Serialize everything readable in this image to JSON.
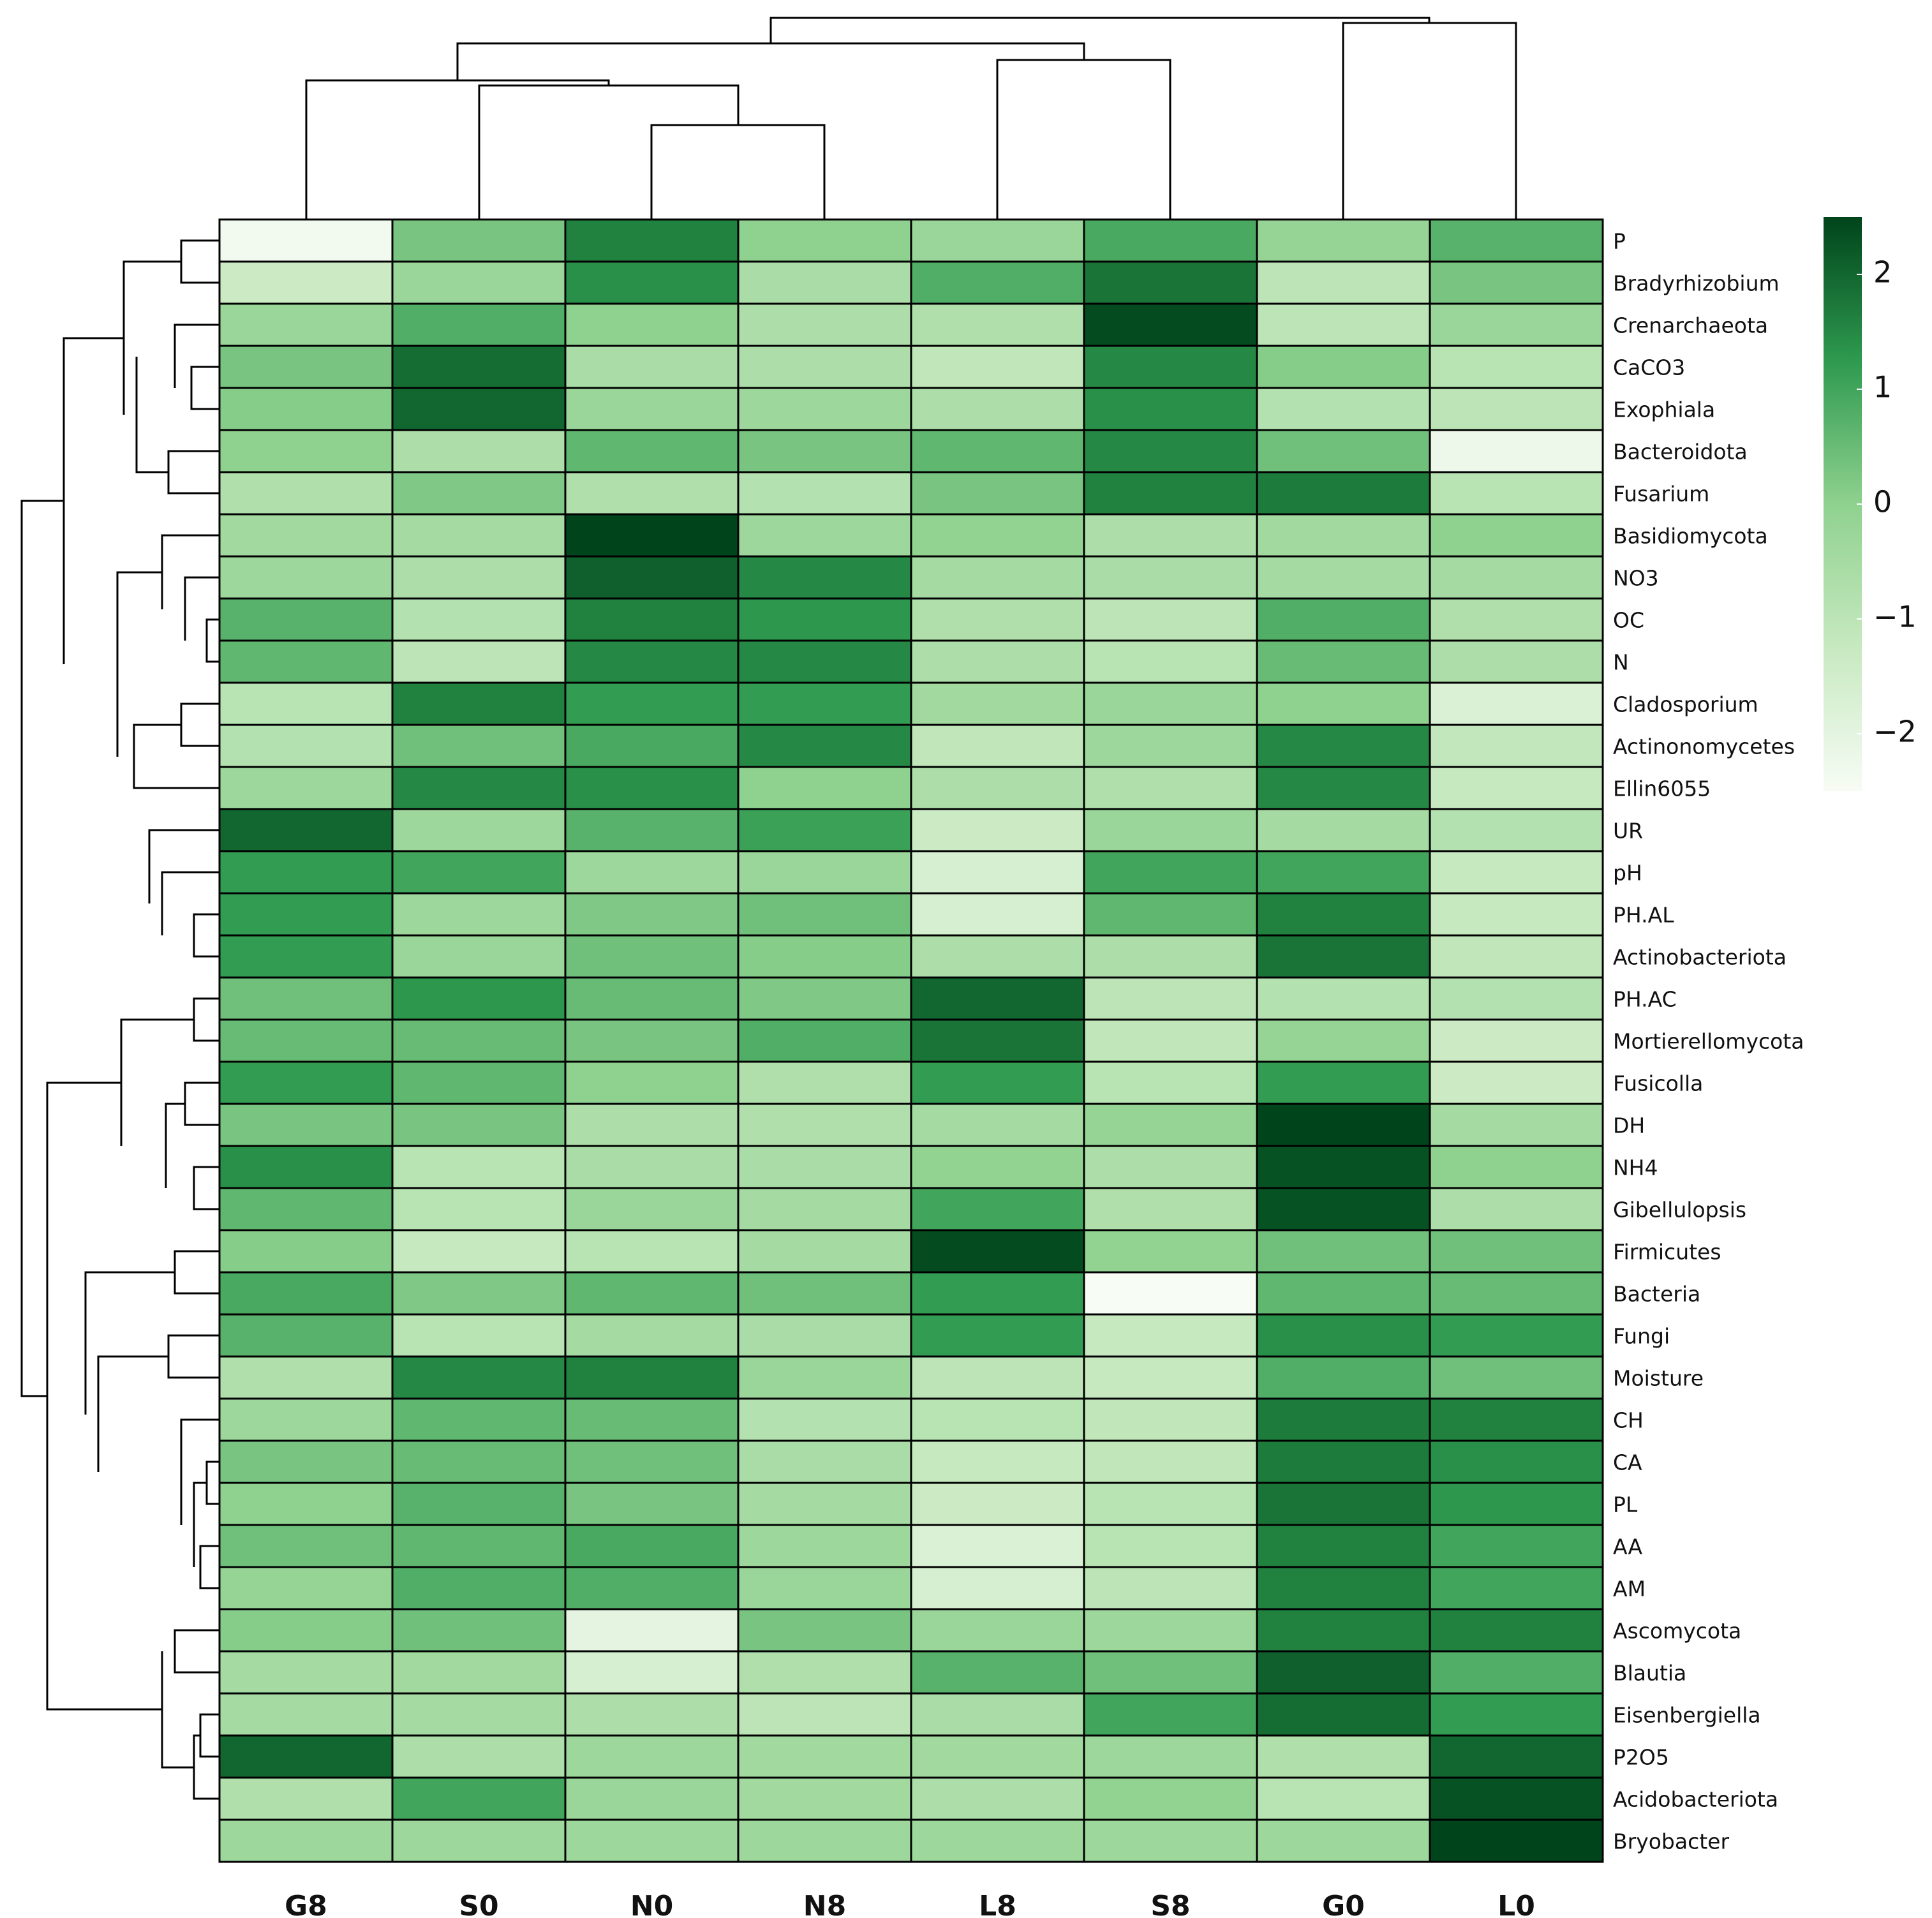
{
  "chart_data": {
    "type": "heatmap",
    "title": "",
    "columns": [
      "G8",
      "S0",
      "N0",
      "N8",
      "L8",
      "S8",
      "G0",
      "L0"
    ],
    "rows": [
      "P",
      "Bradyrhizobium",
      "Crenarchaeota",
      "CaCO3",
      "Exophiala",
      "Bacteroidota",
      "Fusarium",
      "Basidiomycota",
      "NO3",
      "OC",
      "N",
      "Cladosporium",
      "Actinonomycetes",
      "Ellin6055",
      "UR",
      "pH",
      "PH.AL",
      "Actinobacteriota",
      "PH.AC",
      "Mortierellomycota",
      "Fusicolla",
      "DH",
      "NH4",
      "Gibellulopsis",
      "Firmicutes",
      "Bacteria",
      "Fungi",
      "Moisture",
      "CH",
      "CA",
      "PL",
      "AA",
      "AM",
      "Ascomycota",
      "Blautia",
      "Eisenbergiella",
      "P2O5",
      "Acidobacteriota",
      "Bryobacter"
    ],
    "values": [
      [
        -2.4,
        0.3,
        1.6,
        0.0,
        -0.3,
        0.9,
        -0.2,
        0.7
      ],
      [
        -1.6,
        -0.3,
        1.4,
        -0.7,
        0.8,
        1.8,
        -1.2,
        0.3
      ],
      [
        -0.3,
        0.8,
        0.0,
        -0.8,
        -0.9,
        2.4,
        -1.2,
        -0.3
      ],
      [
        0.3,
        1.9,
        -0.7,
        -0.8,
        -1.3,
        1.5,
        0.1,
        -1.1
      ],
      [
        0.1,
        2.0,
        -0.3,
        -0.4,
        -0.8,
        1.4,
        -1.0,
        -1.2
      ],
      [
        0.0,
        -0.8,
        0.6,
        0.3,
        0.6,
        1.5,
        0.4,
        -2.3
      ],
      [
        -0.9,
        0.2,
        -0.9,
        -1.0,
        0.3,
        1.6,
        1.7,
        -1.1
      ],
      [
        -0.5,
        -0.6,
        2.5,
        -0.4,
        -0.1,
        -0.8,
        -0.5,
        0.0
      ],
      [
        -0.4,
        -0.8,
        2.1,
        1.5,
        -0.6,
        -0.7,
        -0.6,
        -0.6
      ],
      [
        0.7,
        -1.0,
        1.6,
        1.3,
        -0.9,
        -1.2,
        0.8,
        -0.9
      ],
      [
        0.6,
        -1.2,
        1.5,
        1.5,
        -0.8,
        -1.1,
        0.5,
        -0.8
      ],
      [
        -1.1,
        1.6,
        1.2,
        1.2,
        -0.5,
        -0.3,
        0.0,
        -1.9
      ],
      [
        -1.0,
        0.4,
        0.9,
        1.5,
        -1.3,
        -0.4,
        1.5,
        -1.4
      ],
      [
        -0.4,
        1.5,
        1.4,
        0.0,
        -0.8,
        -0.9,
        1.5,
        -1.5
      ],
      [
        2.0,
        -0.4,
        0.7,
        1.1,
        -1.6,
        -0.3,
        -0.6,
        -1.0
      ],
      [
        1.2,
        1.0,
        -0.4,
        -0.3,
        -1.8,
        1.0,
        1.0,
        -1.5
      ],
      [
        1.2,
        -0.4,
        0.2,
        0.4,
        -1.8,
        0.6,
        1.6,
        -1.5
      ],
      [
        1.2,
        -0.3,
        0.4,
        0.1,
        -0.8,
        -0.8,
        1.8,
        -1.3
      ],
      [
        0.4,
        1.3,
        0.5,
        0.2,
        2.0,
        -1.2,
        -1.0,
        -1.0
      ],
      [
        0.5,
        0.5,
        0.3,
        0.8,
        1.8,
        -1.3,
        -0.2,
        -1.6
      ],
      [
        1.2,
        0.6,
        0.0,
        -0.9,
        1.2,
        -1.1,
        1.2,
        -1.6
      ],
      [
        0.3,
        0.3,
        -0.8,
        -0.9,
        -0.6,
        -0.2,
        2.5,
        -0.6
      ],
      [
        1.4,
        -1.1,
        -0.7,
        -0.7,
        -0.1,
        -0.8,
        2.3,
        0.0
      ],
      [
        0.6,
        -1.1,
        -0.3,
        -0.6,
        1.0,
        -0.9,
        2.3,
        -0.8
      ],
      [
        0.1,
        -1.5,
        -1.1,
        -0.6,
        2.4,
        -0.1,
        0.4,
        0.4
      ],
      [
        0.9,
        0.2,
        0.6,
        0.4,
        1.2,
        -2.5,
        0.6,
        0.5
      ],
      [
        0.7,
        -1.1,
        -0.6,
        -0.7,
        1.2,
        -1.5,
        1.4,
        1.2
      ],
      [
        -0.9,
        1.5,
        1.6,
        -0.3,
        -1.2,
        -1.5,
        0.8,
        0.4
      ],
      [
        -0.4,
        0.6,
        0.5,
        -1.0,
        -1.1,
        -1.3,
        1.7,
        1.6
      ],
      [
        0.3,
        0.5,
        0.4,
        -0.7,
        -1.5,
        -1.3,
        1.7,
        1.4
      ],
      [
        0.0,
        0.7,
        0.3,
        -0.6,
        -1.6,
        -1.1,
        1.8,
        1.3
      ],
      [
        0.4,
        0.6,
        0.9,
        -0.4,
        -1.9,
        -1.1,
        1.6,
        1.0
      ],
      [
        -0.2,
        0.8,
        0.8,
        -0.3,
        -1.8,
        -1.2,
        1.6,
        1.0
      ],
      [
        0.1,
        0.4,
        -2.1,
        0.3,
        -0.3,
        -0.4,
        1.6,
        1.6
      ],
      [
        -0.6,
        -0.5,
        -1.8,
        -0.9,
        0.7,
        0.4,
        2.1,
        0.8
      ],
      [
        -0.6,
        -0.6,
        -0.8,
        -1.2,
        -0.7,
        1.0,
        1.9,
        1.2
      ],
      [
        2.0,
        -0.8,
        -0.4,
        -0.5,
        -0.5,
        -0.4,
        -0.9,
        2.0
      ],
      [
        -0.9,
        1.0,
        -0.3,
        -0.5,
        -0.8,
        -0.1,
        -1.1,
        2.3
      ],
      [
        -0.4,
        -0.4,
        -0.4,
        -0.4,
        -0.4,
        -0.4,
        -0.4,
        2.6
      ]
    ],
    "color_scale": {
      "min": -2.5,
      "max": 2.5,
      "low_color": "#f7fcf5",
      "mid_color": "#8fd18f",
      "high_color": "#00441b",
      "ticks": [
        {
          "value": 2,
          "label": "2"
        },
        {
          "value": 1,
          "label": "1"
        },
        {
          "value": 0,
          "label": "0"
        },
        {
          "value": -1,
          "label": "−1"
        },
        {
          "value": -2,
          "label": "−2"
        }
      ]
    },
    "column_dendrogram": true,
    "row_dendrogram": true,
    "legend_position": "right"
  }
}
